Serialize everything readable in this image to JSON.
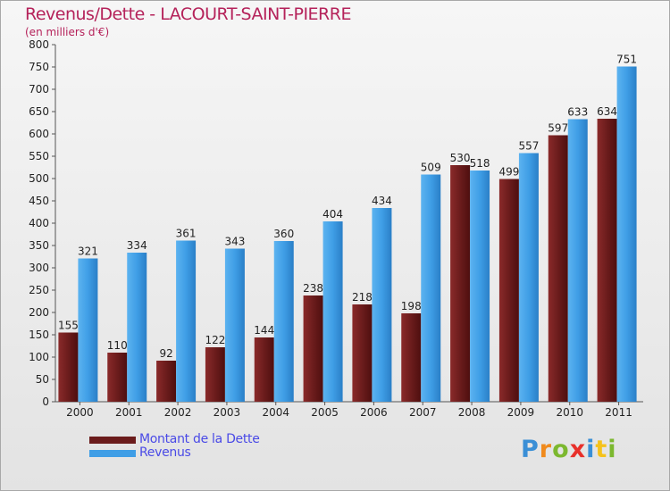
{
  "title": "Revenus/Dette - LACOURT-SAINT-PIERRE",
  "subtitle": "(en milliers d'€)",
  "logo": {
    "letters": [
      "P",
      "r",
      "o",
      "x",
      "i",
      "t",
      "i"
    ],
    "colors": [
      "#3a8fd6",
      "#f08a1c",
      "#7cb82f",
      "#e8302a",
      "#3a8fd6",
      "#f5c21b",
      "#7cb82f"
    ]
  },
  "colors": {
    "dette": "#6b1c1c",
    "revenus": "#3f9ee6"
  },
  "chart_data": {
    "type": "bar",
    "title": "Revenus/Dette - LACOURT-SAINT-PIERRE",
    "ylabel": "(en milliers d'€)",
    "categories": [
      "2000",
      "2001",
      "2002",
      "2003",
      "2004",
      "2005",
      "2006",
      "2007",
      "2008",
      "2009",
      "2010",
      "2011"
    ],
    "series": [
      {
        "name": "Montant de la Dette",
        "values": [
          155,
          110,
          92,
          122,
          144,
          238,
          218,
          198,
          530,
          499,
          597,
          634
        ]
      },
      {
        "name": "Revenus",
        "values": [
          321,
          334,
          361,
          343,
          360,
          404,
          434,
          509,
          518,
          557,
          633,
          751
        ]
      }
    ],
    "ylim": [
      0,
      800
    ],
    "yticks": [
      0,
      50,
      100,
      150,
      200,
      250,
      300,
      350,
      400,
      450,
      500,
      550,
      600,
      650,
      700,
      750,
      800
    ],
    "grid": false,
    "legend": "bottom-left"
  }
}
